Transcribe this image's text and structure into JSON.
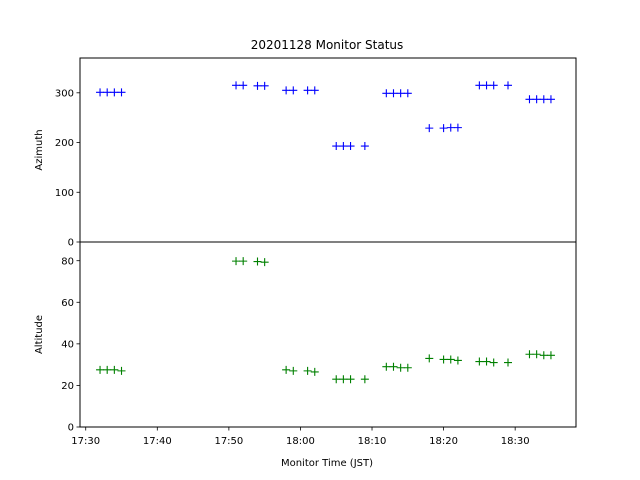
{
  "chart_data": {
    "type": "scatter",
    "title": "20201128 Monitor Status",
    "xlabel": "Monitor Time (JST)",
    "x_tick_labels": [
      "17:30",
      "17:40",
      "17:50",
      "18:00",
      "18:10",
      "18:20",
      "18:30"
    ],
    "x_tick_minutes": [
      1050,
      1060,
      1070,
      1080,
      1090,
      1100,
      1110
    ],
    "xlim_minutes": [
      1049.2,
      1118.5
    ],
    "marker": "+",
    "panels": [
      {
        "name": "azimuth",
        "ylabel": "Azimuth",
        "ylim": [
          0,
          370
        ],
        "yticks": [
          0,
          100,
          200,
          300
        ],
        "color": "#0000ff",
        "points": [
          {
            "t": "17:32",
            "y": 301
          },
          {
            "t": "17:33",
            "y": 301
          },
          {
            "t": "17:34",
            "y": 301
          },
          {
            "t": "17:35",
            "y": 301
          },
          {
            "t": "17:51",
            "y": 315
          },
          {
            "t": "17:52",
            "y": 315
          },
          {
            "t": "17:54",
            "y": 314
          },
          {
            "t": "17:55",
            "y": 314
          },
          {
            "t": "17:58",
            "y": 305
          },
          {
            "t": "17:59",
            "y": 305
          },
          {
            "t": "18:01",
            "y": 305
          },
          {
            "t": "18:02",
            "y": 305
          },
          {
            "t": "18:05",
            "y": 193
          },
          {
            "t": "18:06",
            "y": 193
          },
          {
            "t": "18:07",
            "y": 193
          },
          {
            "t": "18:09",
            "y": 193
          },
          {
            "t": "18:12",
            "y": 299
          },
          {
            "t": "18:13",
            "y": 299
          },
          {
            "t": "18:14",
            "y": 299
          },
          {
            "t": "18:15",
            "y": 299
          },
          {
            "t": "18:18",
            "y": 229
          },
          {
            "t": "18:20",
            "y": 229
          },
          {
            "t": "18:21",
            "y": 230
          },
          {
            "t": "18:22",
            "y": 230
          },
          {
            "t": "18:25",
            "y": 315
          },
          {
            "t": "18:26",
            "y": 315
          },
          {
            "t": "18:27",
            "y": 315
          },
          {
            "t": "18:29",
            "y": 315
          },
          {
            "t": "18:32",
            "y": 287
          },
          {
            "t": "18:33",
            "y": 287
          },
          {
            "t": "18:34",
            "y": 287
          },
          {
            "t": "18:35",
            "y": 287
          }
        ]
      },
      {
        "name": "altitude",
        "ylabel": "Altitude",
        "ylim": [
          0,
          89
        ],
        "yticks": [
          0,
          20,
          40,
          60,
          80
        ],
        "color": "#008000",
        "points": [
          {
            "t": "17:32",
            "y": 27.5
          },
          {
            "t": "17:33",
            "y": 27.5
          },
          {
            "t": "17:34",
            "y": 27.5
          },
          {
            "t": "17:35",
            "y": 27
          },
          {
            "t": "17:51",
            "y": 79.8
          },
          {
            "t": "17:52",
            "y": 79.8
          },
          {
            "t": "17:54",
            "y": 79.6
          },
          {
            "t": "17:55",
            "y": 79.3
          },
          {
            "t": "17:58",
            "y": 27.5
          },
          {
            "t": "17:59",
            "y": 27
          },
          {
            "t": "18:01",
            "y": 27
          },
          {
            "t": "18:02",
            "y": 26.5
          },
          {
            "t": "18:05",
            "y": 23
          },
          {
            "t": "18:06",
            "y": 23
          },
          {
            "t": "18:07",
            "y": 23
          },
          {
            "t": "18:09",
            "y": 23
          },
          {
            "t": "18:12",
            "y": 29
          },
          {
            "t": "18:13",
            "y": 29
          },
          {
            "t": "18:14",
            "y": 28.5
          },
          {
            "t": "18:15",
            "y": 28.5
          },
          {
            "t": "18:18",
            "y": 33
          },
          {
            "t": "18:20",
            "y": 32.5
          },
          {
            "t": "18:21",
            "y": 32.5
          },
          {
            "t": "18:22",
            "y": 32
          },
          {
            "t": "18:25",
            "y": 31.5
          },
          {
            "t": "18:26",
            "y": 31.5
          },
          {
            "t": "18:27",
            "y": 31
          },
          {
            "t": "18:29",
            "y": 31
          },
          {
            "t": "18:32",
            "y": 35
          },
          {
            "t": "18:33",
            "y": 35
          },
          {
            "t": "18:34",
            "y": 34.5
          },
          {
            "t": "18:35",
            "y": 34.5
          }
        ]
      }
    ]
  }
}
